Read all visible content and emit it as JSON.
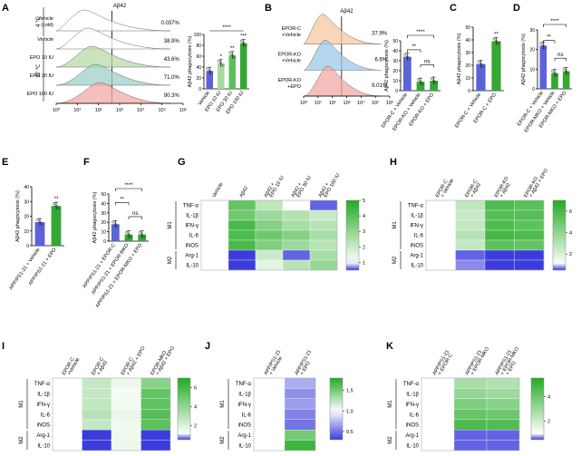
{
  "colors": {
    "blue": "#5b63d9",
    "green": "#33a833",
    "lightgreen": "#a6dba0",
    "white": "#ffffff",
    "black": "#000000",
    "grey": "#888888"
  },
  "chart_data": [
    {
      "panel": "A",
      "type": "histogram",
      "title": "Aβ42",
      "xlabel": "",
      "x_tick_labels": [
        "10⁰",
        "10¹",
        "10²",
        "10³",
        "10⁴",
        "10⁵",
        "10⁶"
      ],
      "group_labels": {
        "cold": "4 ℃",
        "warm": "37 ℃"
      },
      "tracks": [
        {
          "label": "Vehicle\n(cold)",
          "percent": "0.037%",
          "color": "#ffffff"
        },
        {
          "label": "Vehicle",
          "percent": "38.9%",
          "color": "#ffffff"
        },
        {
          "label": "EPO 10 IU",
          "percent": "43.6%",
          "color": "#b8dca8"
        },
        {
          "label": "EPO 30 IU",
          "percent": "71.0%",
          "color": "#9fd0c8"
        },
        {
          "label": "EPO 100 IU",
          "percent": "90.3%",
          "color": "#f1a9a5"
        }
      ]
    },
    {
      "panel": "A",
      "type": "bar",
      "ylabel": "Aβ42 phagocytosis (%)",
      "ylim": [
        0,
        100
      ],
      "yticks": [
        "0",
        "20",
        "40",
        "60",
        "80",
        "100"
      ],
      "categories": [
        "Vehicle",
        "EPO 10 IU",
        "EPO 30 IU",
        "EPO 100 IU"
      ],
      "values": [
        33,
        47,
        62,
        84
      ],
      "colors": [
        "#5b63d9",
        "#a6dba0",
        "#5cbf5c",
        "#33a833"
      ],
      "significance": [
        "",
        "*",
        "**",
        "***"
      ],
      "bracket": "****"
    },
    {
      "panel": "B",
      "type": "histogram",
      "title": "Aβ42",
      "x_tick_labels": [
        "10⁰",
        "10¹",
        "10²",
        "10³",
        "10⁴",
        "10⁵",
        "10⁶"
      ],
      "tracks": [
        {
          "label": "EPOR-C\n+Vehicle",
          "percent": "37.9%",
          "color": "#f5c9a0"
        },
        {
          "label": "EPOR-KO\n+Vehicle",
          "percent": "6.6%",
          "color": "#9ec8e8"
        },
        {
          "label": "EPOR-KO\n+EPO",
          "percent": "9.01%",
          "color": "#f1a9a5"
        }
      ]
    },
    {
      "panel": "B",
      "type": "bar",
      "ylabel": "Aβ42 phagocytosis (%)",
      "ylim": [
        0,
        50
      ],
      "yticks": [
        "0",
        "10",
        "20",
        "30",
        "40",
        "50"
      ],
      "categories": [
        "EPOR-C + Vehicle",
        "EPOR-KO + Vehicle",
        "EPOR-KO + EPO"
      ],
      "values": [
        34,
        9,
        10
      ],
      "colors": [
        "#5b63d9",
        "#33a833",
        "#33a833"
      ],
      "brackets": [
        "****",
        "**",
        "ns"
      ]
    },
    {
      "panel": "C",
      "type": "bar",
      "ylabel": "Aβ42 phagocytosis (%)",
      "ylim": [
        0,
        50
      ],
      "yticks": [
        "0",
        "10",
        "20",
        "30",
        "40",
        "50"
      ],
      "categories": [
        "EPOR-C + Vehicle",
        "EPOR-C + EPO"
      ],
      "values": [
        21,
        39
      ],
      "colors": [
        "#5b63d9",
        "#33a833"
      ],
      "significance": [
        "",
        "**"
      ]
    },
    {
      "panel": "D",
      "type": "bar",
      "ylabel": "Aβ42 phagocytosis (%)",
      "ylim": [
        0,
        30
      ],
      "yticks": [
        "0",
        "10",
        "20",
        "30"
      ],
      "categories": [
        "EPOR-C + Vehicle",
        "EPOR-MKO + Vehicle",
        "EPOR-MKO + EPO"
      ],
      "values": [
        22,
        8,
        9
      ],
      "colors": [
        "#5b63d9",
        "#33a833",
        "#33a833"
      ],
      "brackets": [
        "****",
        "**",
        "ns"
      ]
    },
    {
      "panel": "E",
      "type": "bar",
      "ylabel": "Aβ42 phagocytosis (%)",
      "ylim": [
        0,
        40
      ],
      "yticks": [
        "0",
        "10",
        "20",
        "30",
        "40"
      ],
      "categories": [
        "APP/PS1-21 + Vehicle",
        "APP/PS1-21 + EPO"
      ],
      "values": [
        16,
        27
      ],
      "colors": [
        "#5b63d9",
        "#33a833"
      ],
      "significance": [
        "",
        "**"
      ]
    },
    {
      "panel": "F",
      "type": "bar",
      "ylabel": "Aβ42 phagocytosis (%)",
      "ylim": [
        0,
        50
      ],
      "yticks": [
        "0",
        "10",
        "20",
        "30",
        "40",
        "50"
      ],
      "categories": [
        "APP/PS1-21 + EPOR-C",
        "APP/PS1-21 + EPOR-MKO",
        "APP/PS1-21 + EPOR-MKO + EPO"
      ],
      "values": [
        18,
        7,
        7
      ],
      "colors": [
        "#5b63d9",
        "#33a833",
        "#33a833"
      ],
      "brackets": [
        "****",
        "**",
        "ns"
      ]
    },
    {
      "panel": "G",
      "type": "heatmap",
      "columns": [
        "Vehicle",
        "Aβ42",
        "Aβ42 +\nEPO 10 IU",
        "Aβ42 +\nEPO 30 IU",
        "Aβ42 +\nEPO 100 IU"
      ],
      "rows": [
        "TNF-α",
        "IL-1β",
        "IFN-γ",
        "IL-6",
        "iNOS",
        "Arg-1",
        "IL-10"
      ],
      "groups": [
        {
          "label": "M1",
          "rows": 5
        },
        {
          "label": "M2",
          "rows": 2
        }
      ],
      "colorbar": {
        "min": 0.5,
        "max": 5,
        "ticks": [
          "5",
          "4",
          "3",
          "2",
          "1"
        ]
      },
      "values": [
        [
          1,
          3.8,
          2.2,
          1,
          0.6
        ],
        [
          1,
          3.6,
          2.8,
          2.4,
          2.0
        ],
        [
          1,
          4.3,
          3.2,
          2.6,
          2.3
        ],
        [
          1,
          4.2,
          3.6,
          3.2,
          2.6
        ],
        [
          1,
          4.3,
          3.3,
          2.8,
          2.3
        ],
        [
          1,
          0.4,
          2.0,
          0.6,
          2.6
        ],
        [
          1,
          0.5,
          1.5,
          2.3,
          2.9
        ]
      ]
    },
    {
      "panel": "H",
      "type": "heatmap",
      "columns": [
        "EPOR-C\n+ Vehicle",
        "EPOR-C\n+ Aβ42",
        "EPOR-KO\n+ Aβ42",
        "EPOR-KO\n+ Aβ42 + EPO"
      ],
      "rows": [
        "TNF-α",
        "IL-1β",
        "IFN-γ",
        "IL-6",
        "iNOS",
        "Arg-1",
        "IL-10"
      ],
      "groups": [
        {
          "label": "M1",
          "rows": 5
        },
        {
          "label": "M2",
          "rows": 2
        }
      ],
      "colorbar": {
        "min": 0.5,
        "max": 7,
        "ticks": [
          "6",
          "4",
          "2"
        ]
      },
      "values": [
        [
          1,
          2.8,
          5.8,
          5.5
        ],
        [
          1,
          2.5,
          5.6,
          5.6
        ],
        [
          1,
          2.6,
          5.8,
          5.4
        ],
        [
          1,
          3.0,
          6.0,
          5.8
        ],
        [
          1,
          2.6,
          5.4,
          5.2
        ],
        [
          1,
          0.6,
          0.4,
          0.5
        ],
        [
          1,
          0.7,
          0.5,
          0.5
        ]
      ]
    },
    {
      "panel": "I",
      "type": "heatmap",
      "columns": [
        "EPOR-C\n+Vehicle",
        "EPOR-C\n+ Aβ42",
        "EPOR-C\n+ Aβ42 + EPO",
        "EPOR-MKO\n+ Aβ42 + EPO"
      ],
      "rows": [
        "TNF-α",
        "IL-1β",
        "IFN-γ",
        "IL-6",
        "iNOS",
        "Arg-1",
        "IL-10"
      ],
      "groups": [
        {
          "label": "M1",
          "rows": 5
        },
        {
          "label": "M2",
          "rows": 2
        }
      ],
      "colorbar": {
        "min": 0.5,
        "max": 7,
        "ticks": [
          "6",
          "4",
          "2"
        ]
      },
      "values": [
        [
          1,
          2.6,
          1.5,
          4.2
        ],
        [
          1,
          2.6,
          1.3,
          5.2
        ],
        [
          1,
          2.7,
          1.3,
          5.3
        ],
        [
          1,
          3.0,
          1.6,
          5.6
        ],
        [
          1,
          2.6,
          1.4,
          5.4
        ],
        [
          1,
          0.5,
          1.4,
          0.4
        ],
        [
          1,
          0.5,
          1.5,
          0.4
        ]
      ]
    },
    {
      "panel": "J",
      "type": "heatmap",
      "columns": [
        "APP/PS1-21\n+ Vehicle",
        "APP/PS1-21\n+ EPO"
      ],
      "rows": [
        "TNF-α",
        "IL-1β",
        "IFN-γ",
        "IL-6",
        "iNOS",
        "Arg-1",
        "IL-10"
      ],
      "groups": [
        {
          "label": "M1",
          "rows": 5
        },
        {
          "label": "M2",
          "rows": 2
        }
      ],
      "colorbar": {
        "min": 0.3,
        "max": 1.8,
        "ticks": [
          "1.5",
          "1.0",
          "0.5"
        ]
      },
      "values": [
        [
          1,
          0.7
        ],
        [
          1,
          0.6
        ],
        [
          1,
          0.65
        ],
        [
          1,
          0.55
        ],
        [
          1,
          0.5
        ],
        [
          1,
          1.5
        ],
        [
          1,
          1.7
        ]
      ]
    },
    {
      "panel": "K",
      "type": "heatmap",
      "columns": [
        "APP/PS1-21\n+ EPOR-C",
        "APP/PS1-21\n+ EPOR-MKO",
        "APP/PS1-21\n+ EPOR-MKO\n+ EPO"
      ],
      "rows": [
        "TNF-α",
        "IL-1β",
        "IFN-γ",
        "IL-6",
        "iNOS",
        "Arg-1",
        "IL-10"
      ],
      "groups": [
        {
          "label": "M1",
          "rows": 5
        },
        {
          "label": "M2",
          "rows": 2
        }
      ],
      "colorbar": {
        "min": 0.5,
        "max": 5.5,
        "ticks": [
          "4",
          "2"
        ]
      },
      "values": [
        [
          1,
          2.8,
          2.6
        ],
        [
          1,
          3.2,
          3.0
        ],
        [
          1,
          3.6,
          3.4
        ],
        [
          1,
          4.1,
          4.0
        ],
        [
          1,
          4.6,
          4.5
        ],
        [
          1,
          0.6,
          0.6
        ],
        [
          1,
          0.6,
          0.6
        ]
      ]
    }
  ]
}
